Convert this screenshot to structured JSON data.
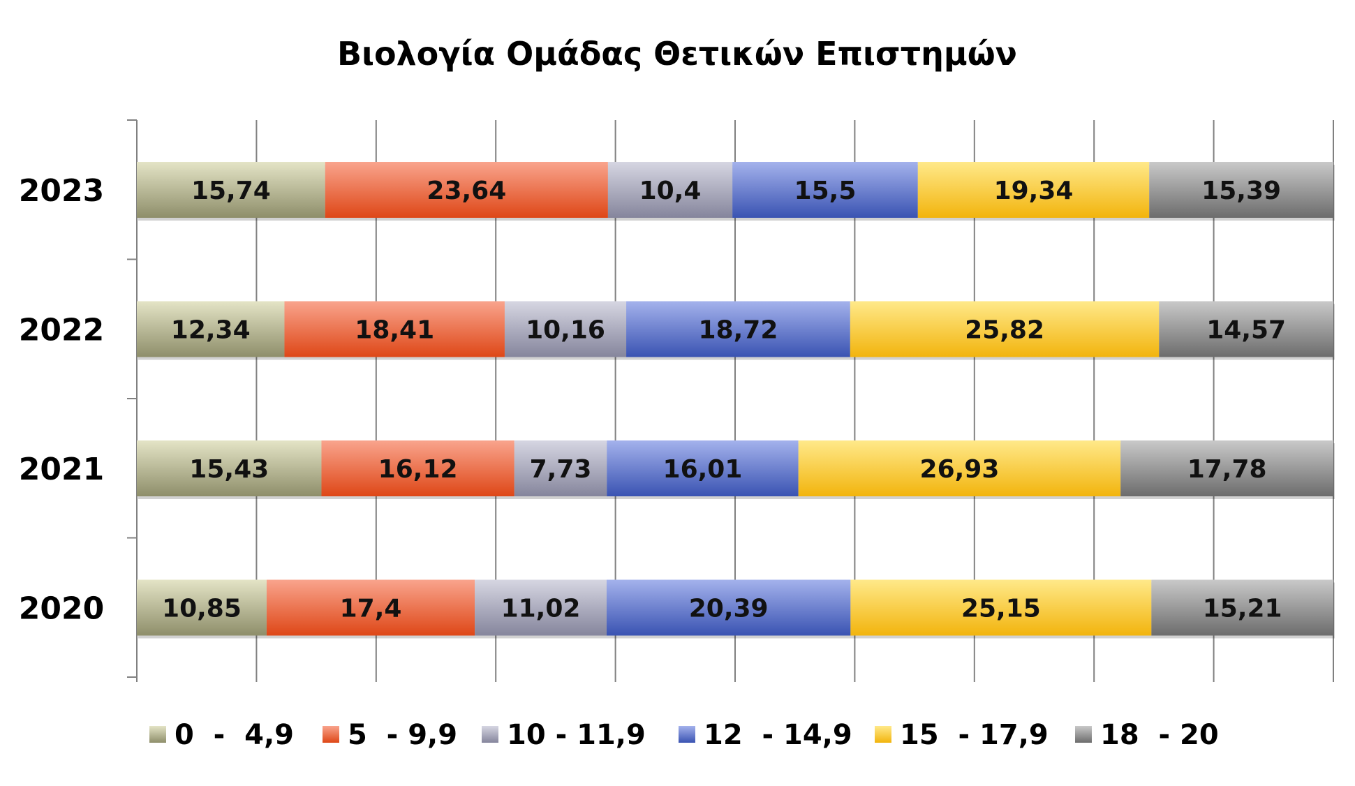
{
  "chart_data": {
    "type": "bar",
    "orientation": "horizontal",
    "stacked": "percent",
    "title": "Βιολογία Ομάδας Θετικών Επιστημών",
    "categories": [
      "2023",
      "2022",
      "2021",
      "2020"
    ],
    "series": [
      {
        "name": "0  -  4,9",
        "values": [
          15.74,
          12.34,
          15.43,
          10.85
        ],
        "labels": [
          "15,74",
          "12,34",
          "15,43",
          "10,85"
        ],
        "color_light": "#e4e4c6",
        "color_dark": "#8e8e6a"
      },
      {
        "name": "5  - 9,9",
        "values": [
          23.64,
          18.41,
          16.12,
          17.4
        ],
        "labels": [
          "23,64",
          "18,41",
          "16,12",
          "17,4"
        ],
        "color_light": "#f9a48d",
        "color_dark": "#de4717"
      },
      {
        "name": "10 - 11,9",
        "values": [
          10.4,
          10.16,
          7.73,
          11.02
        ],
        "labels": [
          "10,4",
          "10,16",
          "7,73",
          "11,02"
        ],
        "color_light": "#d6d6e2",
        "color_dark": "#85859c"
      },
      {
        "name": "12  - 14,9",
        "values": [
          15.5,
          18.72,
          16.01,
          20.39
        ],
        "labels": [
          "15,5",
          "18,72",
          "16,01",
          "20,39"
        ],
        "color_light": "#a4b2ec",
        "color_dark": "#3a53b2"
      },
      {
        "name": "15  - 17,9",
        "values": [
          19.34,
          25.82,
          26.93,
          25.15
        ],
        "labels": [
          "19,34",
          "25,82",
          "26,93",
          "25,15"
        ],
        "color_light": "#ffe98a",
        "color_dark": "#f2b40d"
      },
      {
        "name": "18  - 20",
        "values": [
          15.39,
          14.57,
          17.78,
          15.21
        ],
        "labels": [
          "15,39",
          "14,57",
          "17,78",
          "15,21"
        ],
        "color_light": "#c9c9c9",
        "color_dark": "#6c6c6c"
      }
    ],
    "xlim": [
      0,
      100
    ],
    "grid": true,
    "legend": "bottom"
  }
}
